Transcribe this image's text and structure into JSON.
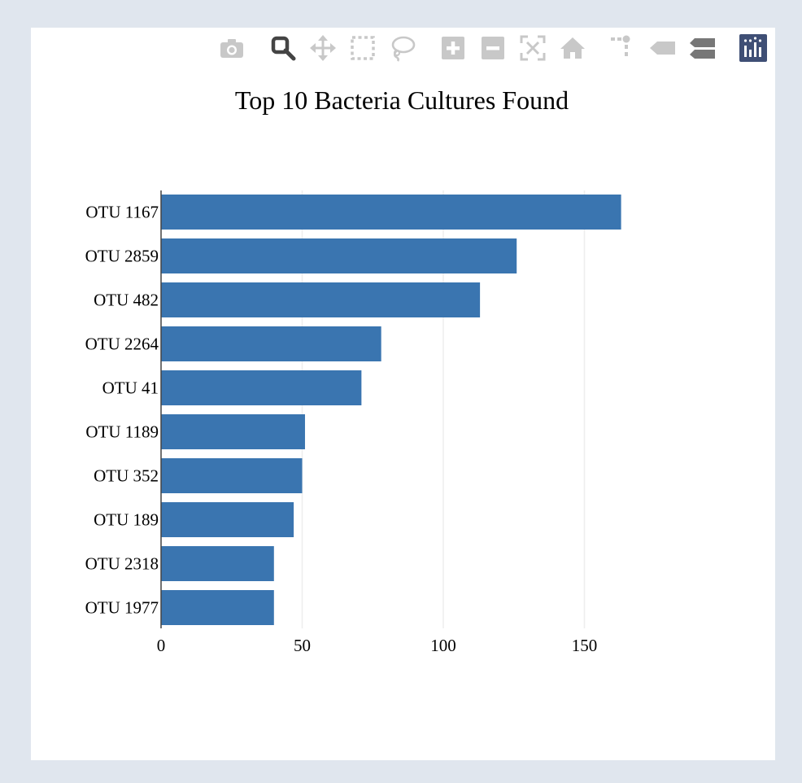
{
  "modebar": {
    "buttons": [
      {
        "icon": "camera-icon",
        "title": "Download plot as a png"
      },
      {
        "icon": "zoom-icon",
        "title": "Zoom"
      },
      {
        "icon": "pan-icon",
        "title": "Pan"
      },
      {
        "icon": "box-select-icon",
        "title": "Box Select"
      },
      {
        "icon": "lasso-select-icon",
        "title": "Lasso Select"
      },
      {
        "icon": "zoom-in-icon",
        "title": "Zoom in"
      },
      {
        "icon": "zoom-out-icon",
        "title": "Zoom out"
      },
      {
        "icon": "autoscale-icon",
        "title": "Autoscale"
      },
      {
        "icon": "reset-axes-icon",
        "title": "Reset axes"
      },
      {
        "icon": "spike-lines-icon",
        "title": "Toggle Spike Lines"
      },
      {
        "icon": "hover-closest-icon",
        "title": "Show closest data on hover"
      },
      {
        "icon": "hover-compare-icon",
        "title": "Compare data on hover"
      },
      {
        "icon": "plotly-logo-icon",
        "title": "Produced with Plotly"
      }
    ],
    "active_color": "#444444",
    "inactive_color": "#c8c8c8",
    "logo_color": "#3f4f75"
  },
  "chart_data": {
    "type": "bar",
    "orientation": "horizontal",
    "title": "Top 10 Bacteria Cultures Found",
    "categories": [
      "OTU 1167",
      "OTU 2859",
      "OTU 482",
      "OTU 2264",
      "OTU 41",
      "OTU 1189",
      "OTU 352",
      "OTU 189",
      "OTU 2318",
      "OTU 1977"
    ],
    "values": [
      163,
      126,
      113,
      78,
      71,
      51,
      50,
      47,
      40,
      40
    ],
    "xlim": [
      0,
      200
    ],
    "xticks": [
      0,
      50,
      100,
      150
    ],
    "xtick_labels": [
      "0",
      "50",
      "100",
      "150"
    ],
    "xlabel": "",
    "ylabel": "",
    "bar_color": "#3a75b0",
    "grid": true,
    "grid_color": "#eeeeee"
  }
}
